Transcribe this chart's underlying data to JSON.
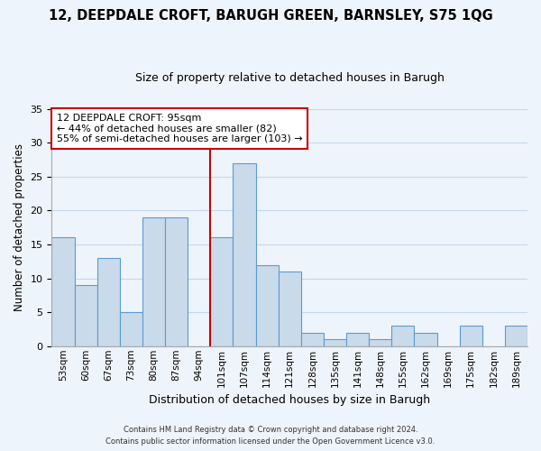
{
  "title": "12, DEEPDALE CROFT, BARUGH GREEN, BARNSLEY, S75 1QG",
  "subtitle": "Size of property relative to detached houses in Barugh",
  "xlabel": "Distribution of detached houses by size in Barugh",
  "ylabel": "Number of detached properties",
  "bar_labels": [
    "53sqm",
    "60sqm",
    "67sqm",
    "73sqm",
    "80sqm",
    "87sqm",
    "94sqm",
    "101sqm",
    "107sqm",
    "114sqm",
    "121sqm",
    "128sqm",
    "135sqm",
    "141sqm",
    "148sqm",
    "155sqm",
    "162sqm",
    "169sqm",
    "175sqm",
    "182sqm",
    "189sqm"
  ],
  "bar_values": [
    16,
    9,
    13,
    5,
    19,
    19,
    0,
    16,
    27,
    12,
    11,
    2,
    1,
    2,
    1,
    3,
    2,
    0,
    3,
    0,
    3
  ],
  "bar_color": "#c9daea",
  "bar_edge_color": "#5b9bd5",
  "grid_color": "#c5d8ed",
  "background_color": "#eef4fb",
  "vline_x": 6.5,
  "vline_color": "#cc0000",
  "annotation_line1": "12 DEEPDALE CROFT: 95sqm",
  "annotation_line2": "← 44% of detached houses are smaller (82)",
  "annotation_line3": "55% of semi-detached houses are larger (103) →",
  "annotation_box_edge": "#cc0000",
  "annotation_box_bg": "white",
  "footer_line1": "Contains HM Land Registry data © Crown copyright and database right 2024.",
  "footer_line2": "Contains public sector information licensed under the Open Government Licence v3.0.",
  "ylim": [
    0,
    35
  ],
  "yticks": [
    0,
    5,
    10,
    15,
    20,
    25,
    30,
    35
  ]
}
